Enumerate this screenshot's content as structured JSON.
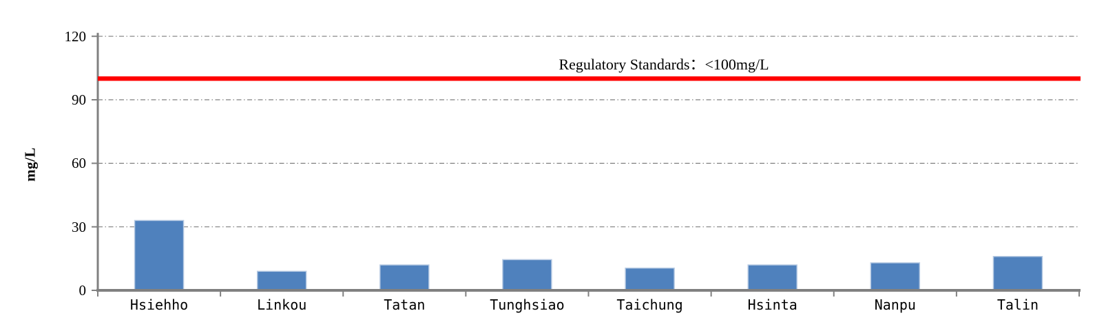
{
  "figure": {
    "background": "#FFFFFF"
  },
  "chart_data": {
    "type": "bar",
    "title": "",
    "xlabel": "",
    "ylabel": "mg/L",
    "categories": [
      "Hsiehho",
      "Linkou",
      "Tatan",
      "Tunghsiao",
      "Taichung",
      "Hsinta",
      "Nanpu",
      "Talin"
    ],
    "values": [
      33,
      9,
      12,
      14.5,
      10.5,
      12,
      13,
      16
    ],
    "ylim": [
      0,
      120
    ],
    "yticks": [
      0,
      30,
      60,
      90,
      120
    ],
    "grid": "horizontal dash-dot",
    "legend_position": "none",
    "bar_color": "#4F81BD",
    "bar_border_color": "#B5C9E2",
    "axis_color": "#808080",
    "gridline_color": "#7F7F7F",
    "text_color": "#000000",
    "reference_line": {
      "value": 100,
      "color": "#FF0000",
      "label": "Regulatory Standards：<100mg/L"
    }
  }
}
